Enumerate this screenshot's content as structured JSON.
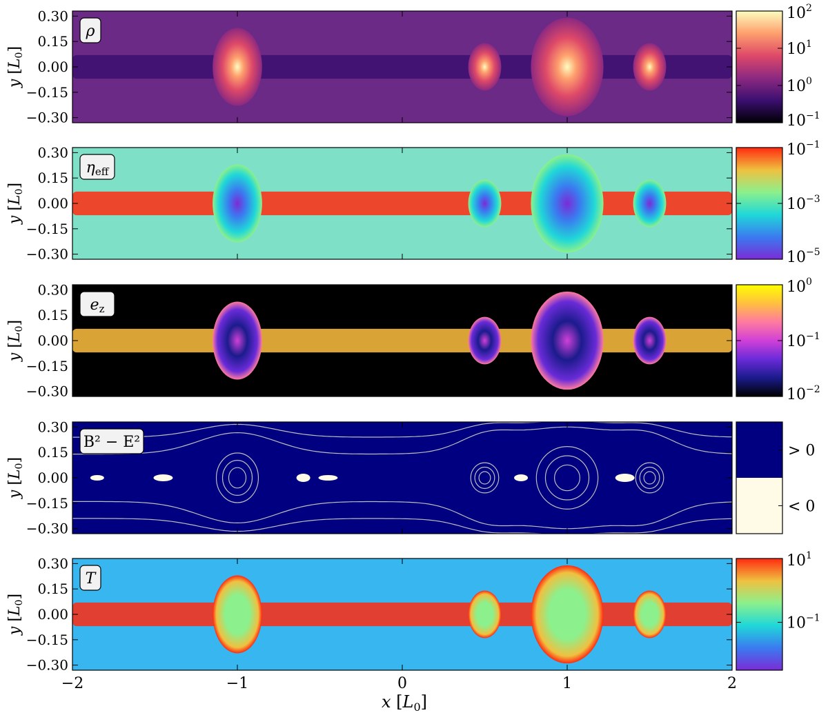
{
  "chart_data": {
    "type": "heatmap",
    "xlabel": "x [L_0]",
    "ylabel": "y [L_0]",
    "xlim": [
      -2,
      2
    ],
    "ylim": [
      -0.33,
      0.33
    ],
    "xticks": [
      {
        "v": -2,
        "label": "−2"
      },
      {
        "v": -1,
        "label": "−1"
      },
      {
        "v": 0,
        "label": "0"
      },
      {
        "v": 1,
        "label": "1"
      },
      {
        "v": 2,
        "label": "2"
      }
    ],
    "yticks": [
      {
        "v": 0.3,
        "label": "0.30"
      },
      {
        "v": 0.15,
        "label": "0.15"
      },
      {
        "v": 0.0,
        "label": "0.00"
      },
      {
        "v": -0.15,
        "label": "−0.15"
      },
      {
        "v": -0.3,
        "label": "−0.30"
      }
    ],
    "panels": [
      {
        "id": "rho",
        "label": "ρ",
        "colormap": [
          "#000004",
          "#3b0f70",
          "#8c2981",
          "#de4968",
          "#fe9f6d",
          "#fcfdbf"
        ],
        "background": "#6a2a86",
        "scale": "log",
        "colorbar": {
          "min_exp": -1,
          "max_exp": 2,
          "ticks": [
            {
              "exp": 2,
              "label": "10",
              "sup": "2"
            },
            {
              "exp": 1,
              "label": "10",
              "sup": "1"
            },
            {
              "exp": 0,
              "label": "10",
              "sup": "0"
            },
            {
              "exp": -1,
              "label": "10",
              "sup": "−1"
            }
          ]
        }
      },
      {
        "id": "eta",
        "label": "η",
        "label_sub": "eff",
        "colormap": [
          "#7b2bd6",
          "#3a7bf0",
          "#20d8d8",
          "#8cf08c",
          "#f0c040",
          "#ff2a10"
        ],
        "background": "#7fe0c8",
        "scale": "log",
        "colorbar": {
          "min_exp": -5,
          "max_exp": -1,
          "ticks": [
            {
              "exp": -1,
              "label": "10",
              "sup": "−1"
            },
            {
              "exp": -3,
              "label": "10",
              "sup": "−3"
            },
            {
              "exp": -5,
              "label": "10",
              "sup": "−5"
            }
          ]
        }
      },
      {
        "id": "ez",
        "label": "e",
        "label_sub": "z",
        "colormap": [
          "#000000",
          "#1b1b8c",
          "#6a2bd8",
          "#d040d8",
          "#ff7aa0",
          "#ffc040",
          "#ffff00"
        ],
        "background": "#000000",
        "scale": "log",
        "colorbar": {
          "min_exp": -2,
          "max_exp": 0,
          "ticks": [
            {
              "exp": 0,
              "label": "10",
              "sup": "0"
            },
            {
              "exp": -1,
              "label": "10",
              "sup": "−1"
            },
            {
              "exp": -2,
              "label": "10",
              "sup": "−2"
            }
          ]
        }
      },
      {
        "id": "b2e2",
        "label": "B",
        "label_expr": "B² − E²",
        "colormap": [
          "#000080",
          "#fffbe6"
        ],
        "background": "#000080",
        "scale": "binary",
        "colorbar": {
          "categories": [
            "> 0",
            "< 0"
          ]
        }
      },
      {
        "id": "T",
        "label": "T",
        "colormap": [
          "#7b2bd6",
          "#3a7bf0",
          "#20d8d8",
          "#8cf08c",
          "#f0c040",
          "#ff2a10"
        ],
        "background": "#38b6f0",
        "scale": "log",
        "colorbar": {
          "min_exp": -2.5,
          "max_exp": 1,
          "ticks": [
            {
              "exp": 1,
              "label": "10",
              "sup": "1"
            },
            {
              "exp": -1,
              "label": "10",
              "sup": "−1"
            }
          ]
        }
      }
    ],
    "features": {
      "plasmoids": [
        {
          "x": -1.0,
          "r": 0.15,
          "ry": 0.23
        },
        {
          "x": 0.5,
          "r": 0.1,
          "ry": 0.14
        },
        {
          "x": 1.0,
          "r": 0.22,
          "ry": 0.29
        },
        {
          "x": 1.5,
          "r": 0.1,
          "ry": 0.14
        }
      ],
      "current_sheet_halfwidth": 0.07
    }
  }
}
